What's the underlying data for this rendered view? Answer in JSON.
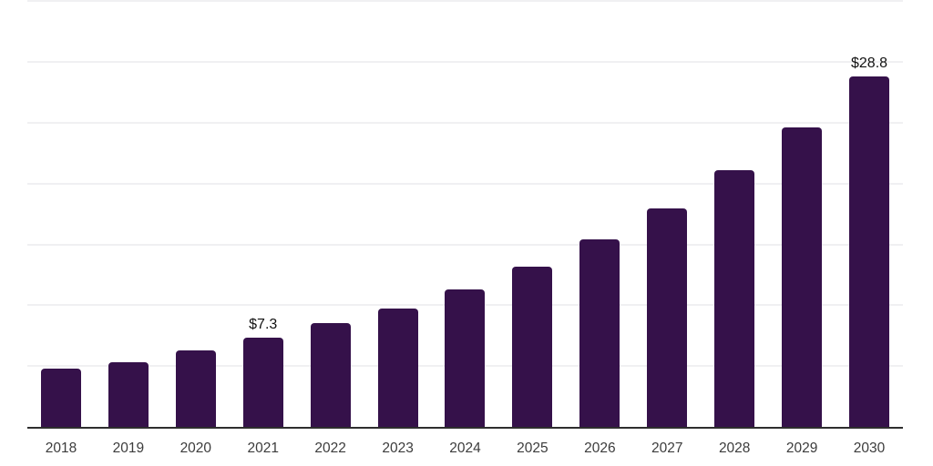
{
  "figure": {
    "background_color": "#ffffff"
  },
  "palette": {
    "bar_color": "#35114a",
    "grid_color": "#f0f0f2",
    "axis_color": "#2e2e2e",
    "tick_label_color": "#3c3c3c",
    "value_label_color": "#111111"
  },
  "chart_data": {
    "type": "bar",
    "title": "",
    "xlabel": "",
    "ylabel": "",
    "categories": [
      "2018",
      "2019",
      "2020",
      "2021",
      "2022",
      "2023",
      "2024",
      "2025",
      "2026",
      "2027",
      "2028",
      "2029",
      "2030"
    ],
    "values": [
      4.8,
      5.3,
      6.3,
      7.3,
      8.5,
      9.7,
      11.3,
      13.2,
      15.4,
      18.0,
      21.1,
      24.6,
      28.8
    ],
    "data_labels": [
      null,
      null,
      null,
      "$7.3",
      null,
      null,
      null,
      null,
      null,
      null,
      null,
      null,
      "$28.8"
    ],
    "ylim": [
      0,
      35.1
    ],
    "gridline_values": [
      5,
      10,
      15,
      20,
      25,
      30,
      35
    ],
    "grid": true,
    "y_axis_tick_labels_visible": false,
    "legend": false,
    "legend_position": "none"
  }
}
